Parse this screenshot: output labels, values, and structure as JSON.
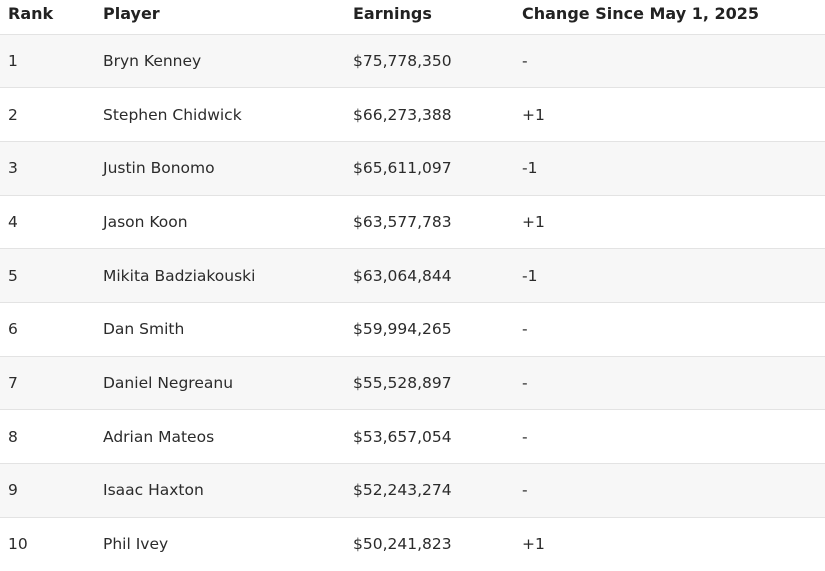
{
  "table": {
    "headers": {
      "rank": "Rank",
      "player": "Player",
      "earnings": "Earnings",
      "change": "Change Since May 1, 2025"
    },
    "rows": [
      {
        "rank": "1",
        "player": "Bryn Kenney",
        "earnings": "$75,778,350",
        "change": "-"
      },
      {
        "rank": "2",
        "player": "Stephen Chidwick",
        "earnings": "$66,273,388",
        "change": "+1"
      },
      {
        "rank": "3",
        "player": "Justin Bonomo",
        "earnings": "$65,611,097",
        "change": "-1"
      },
      {
        "rank": "4",
        "player": "Jason Koon",
        "earnings": "$63,577,783",
        "change": "+1"
      },
      {
        "rank": "5",
        "player": "Mikita Badziakouski",
        "earnings": "$63,064,844",
        "change": "-1"
      },
      {
        "rank": "6",
        "player": "Dan Smith",
        "earnings": "$59,994,265",
        "change": "-"
      },
      {
        "rank": "7",
        "player": "Daniel Negreanu",
        "earnings": "$55,528,897",
        "change": "-"
      },
      {
        "rank": "8",
        "player": "Adrian Mateos",
        "earnings": "$53,657,054",
        "change": "-"
      },
      {
        "rank": "9",
        "player": "Isaac Haxton",
        "earnings": "$52,243,274",
        "change": "-"
      },
      {
        "rank": "10",
        "player": "Phil Ivey",
        "earnings": "$50,241,823",
        "change": "+1"
      }
    ]
  }
}
